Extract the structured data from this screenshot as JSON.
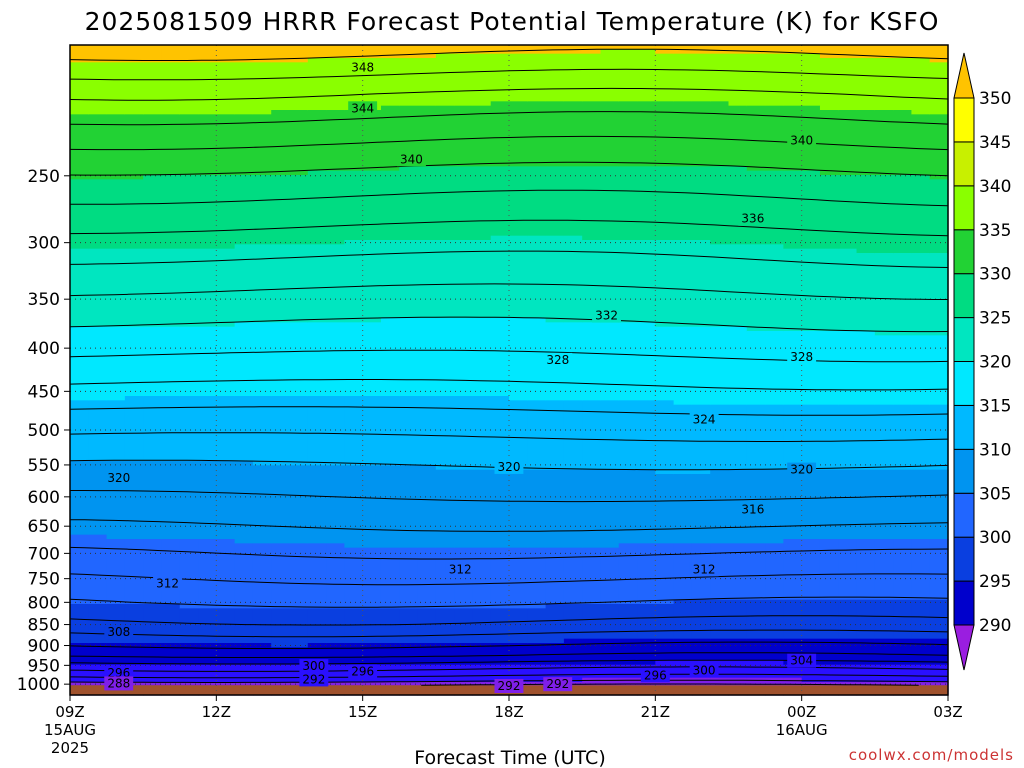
{
  "chart_data": {
    "type": "heatmap",
    "title": "2025081509 HRRR Forecast Potential Temperature (K) for KSFO",
    "xlabel": "Forecast Time (UTC)",
    "ylabel": "",
    "y_axis": {
      "scale": "log",
      "inverted": true,
      "range": [
        1030,
        175
      ],
      "ticks": [
        250,
        300,
        350,
        400,
        450,
        500,
        550,
        600,
        650,
        700,
        750,
        800,
        850,
        900,
        950,
        1000
      ],
      "grid": "dotted"
    },
    "x_axis": {
      "range_hours": [
        0,
        18
      ],
      "ticks": [
        {
          "hour": 0,
          "label": "09Z",
          "sub1": "15AUG",
          "sub2": "2025"
        },
        {
          "hour": 3,
          "label": "12Z",
          "sub1": "",
          "sub2": ""
        },
        {
          "hour": 6,
          "label": "15Z",
          "sub1": "",
          "sub2": ""
        },
        {
          "hour": 9,
          "label": "18Z",
          "sub1": "",
          "sub2": ""
        },
        {
          "hour": 12,
          "label": "21Z",
          "sub1": "",
          "sub2": ""
        },
        {
          "hour": 15,
          "label": "00Z",
          "sub1": "16AUG",
          "sub2": ""
        },
        {
          "hour": 18,
          "label": "03Z",
          "sub1": "",
          "sub2": ""
        }
      ],
      "grid": "dotted"
    },
    "colorbar": {
      "bounds": [
        290,
        295,
        300,
        305,
        310,
        315,
        320,
        325,
        330,
        335,
        340,
        345,
        350
      ],
      "labels": [
        "290",
        "295",
        "300",
        "305",
        "310",
        "315",
        "320",
        "325",
        "330",
        "335",
        "340",
        "345",
        "350"
      ],
      "colors": [
        "#7f1fe8",
        "#2a10ff",
        "#0000cc",
        "#0a3fe0",
        "#2166ff",
        "#0094f0",
        "#00b9ff",
        "#00e8ff",
        "#00e6c0",
        "#00dc82",
        "#22d234",
        "#8aff00",
        "#c8f000",
        "#ffff00",
        "#ffc300"
      ],
      "under_color": "#9a1ee0",
      "over_color": "#ffc300",
      "extend": "both"
    },
    "ground_color": "#a0522d",
    "contour_interval": 2,
    "profile": [
      {
        "p": 1030,
        "theta": 286
      },
      {
        "p": 1020,
        "theta": 288
      },
      {
        "p": 1005,
        "theta": 291.5
      },
      {
        "p": 990,
        "theta": 294.5
      },
      {
        "p": 970,
        "theta": 297
      },
      {
        "p": 950,
        "theta": 299
      },
      {
        "p": 925,
        "theta": 302
      },
      {
        "p": 900,
        "theta": 304
      },
      {
        "p": 870,
        "theta": 306
      },
      {
        "p": 850,
        "theta": 307.5
      },
      {
        "p": 800,
        "theta": 310
      },
      {
        "p": 750,
        "theta": 312
      },
      {
        "p": 700,
        "theta": 314
      },
      {
        "p": 650,
        "theta": 316
      },
      {
        "p": 600,
        "theta": 318
      },
      {
        "p": 550,
        "theta": 320
      },
      {
        "p": 500,
        "theta": 322.5
      },
      {
        "p": 450,
        "theta": 325.5
      },
      {
        "p": 400,
        "theta": 328.5
      },
      {
        "p": 350,
        "theta": 331.5
      },
      {
        "p": 300,
        "theta": 335
      },
      {
        "p": 250,
        "theta": 339.5
      },
      {
        "p": 225,
        "theta": 342.5
      },
      {
        "p": 200,
        "theta": 346
      },
      {
        "p": 185,
        "theta": 349
      },
      {
        "p": 175,
        "theta": 351
      }
    ],
    "contour_labels": [
      {
        "text": "348",
        "hour": 6,
        "p": 186
      },
      {
        "text": "344",
        "hour": 6,
        "p": 208
      },
      {
        "text": "340",
        "hour": 7,
        "p": 239
      },
      {
        "text": "340",
        "hour": 15,
        "p": 227
      },
      {
        "text": "336",
        "hour": 14,
        "p": 281
      },
      {
        "text": "332",
        "hour": 11,
        "p": 366
      },
      {
        "text": "328",
        "hour": 10,
        "p": 413
      },
      {
        "text": "328",
        "hour": 15,
        "p": 410
      },
      {
        "text": "324",
        "hour": 13,
        "p": 486
      },
      {
        "text": "320",
        "hour": 1,
        "p": 570
      },
      {
        "text": "320",
        "hour": 9,
        "p": 553
      },
      {
        "text": "320",
        "hour": 15,
        "p": 557
      },
      {
        "text": "316",
        "hour": 14,
        "p": 621
      },
      {
        "text": "312",
        "hour": 2,
        "p": 760
      },
      {
        "text": "312",
        "hour": 8,
        "p": 731
      },
      {
        "text": "312",
        "hour": 13,
        "p": 731
      },
      {
        "text": "308",
        "hour": 1,
        "p": 868
      },
      {
        "text": "304",
        "hour": 15,
        "p": 938
      },
      {
        "text": "300",
        "hour": 5,
        "p": 952
      },
      {
        "text": "300",
        "hour": 13,
        "p": 963
      },
      {
        "text": "296",
        "hour": 1,
        "p": 970
      },
      {
        "text": "296",
        "hour": 6,
        "p": 966
      },
      {
        "text": "296",
        "hour": 12,
        "p": 976
      },
      {
        "text": "292",
        "hour": 5,
        "p": 987
      },
      {
        "text": "292",
        "hour": 9,
        "p": 1005
      },
      {
        "text": "292",
        "hour": 10,
        "p": 1000
      },
      {
        "text": "288",
        "hour": 1,
        "p": 998
      }
    ]
  },
  "credit": "coolwx.com/models"
}
